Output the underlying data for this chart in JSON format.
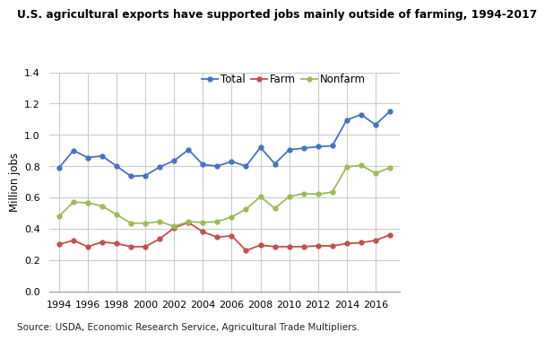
{
  "title": "U.S. agricultural exports have supported jobs mainly outside of farming, 1994-2017",
  "ylabel": "Million jobs",
  "source": "Source: USDA, Economic Research Service, Agricultural Trade Multipliers.",
  "years": [
    1994,
    1995,
    1996,
    1997,
    1998,
    1999,
    2000,
    2001,
    2002,
    2003,
    2004,
    2005,
    2006,
    2007,
    2008,
    2009,
    2010,
    2011,
    2012,
    2013,
    2014,
    2015,
    2016,
    2017
  ],
  "total": [
    0.79,
    0.9,
    0.855,
    0.865,
    0.8,
    0.735,
    0.74,
    0.795,
    0.835,
    0.905,
    0.81,
    0.8,
    0.83,
    0.8,
    0.92,
    0.815,
    0.905,
    0.915,
    0.925,
    0.93,
    1.095,
    1.13,
    1.065,
    1.15
  ],
  "farm": [
    0.3,
    0.325,
    0.285,
    0.315,
    0.305,
    0.285,
    0.285,
    0.335,
    0.405,
    0.44,
    0.38,
    0.345,
    0.355,
    0.26,
    0.295,
    0.285,
    0.285,
    0.285,
    0.29,
    0.29,
    0.305,
    0.31,
    0.325,
    0.36
  ],
  "nonfarm": [
    0.48,
    0.57,
    0.565,
    0.545,
    0.49,
    0.435,
    0.435,
    0.445,
    0.415,
    0.445,
    0.44,
    0.445,
    0.475,
    0.525,
    0.605,
    0.53,
    0.605,
    0.625,
    0.62,
    0.635,
    0.795,
    0.805,
    0.755,
    0.79
  ],
  "total_color": "#4472C4",
  "farm_color": "#C0504D",
  "nonfarm_color": "#9BBB59",
  "ylim": [
    0,
    1.4
  ],
  "yticks": [
    0.0,
    0.2,
    0.4,
    0.6,
    0.8,
    1.0,
    1.2,
    1.4
  ],
  "xticks": [
    1994,
    1996,
    1998,
    2000,
    2002,
    2004,
    2006,
    2008,
    2010,
    2012,
    2014,
    2016
  ],
  "legend_labels": [
    "Total",
    "Farm",
    "Nonfarm"
  ],
  "title_fontsize": 8.8,
  "ylabel_fontsize": 8.5,
  "tick_fontsize": 8,
  "source_fontsize": 7.5,
  "legend_fontsize": 8.5,
  "background_color": "#ffffff",
  "grid_color": "#cccccc"
}
